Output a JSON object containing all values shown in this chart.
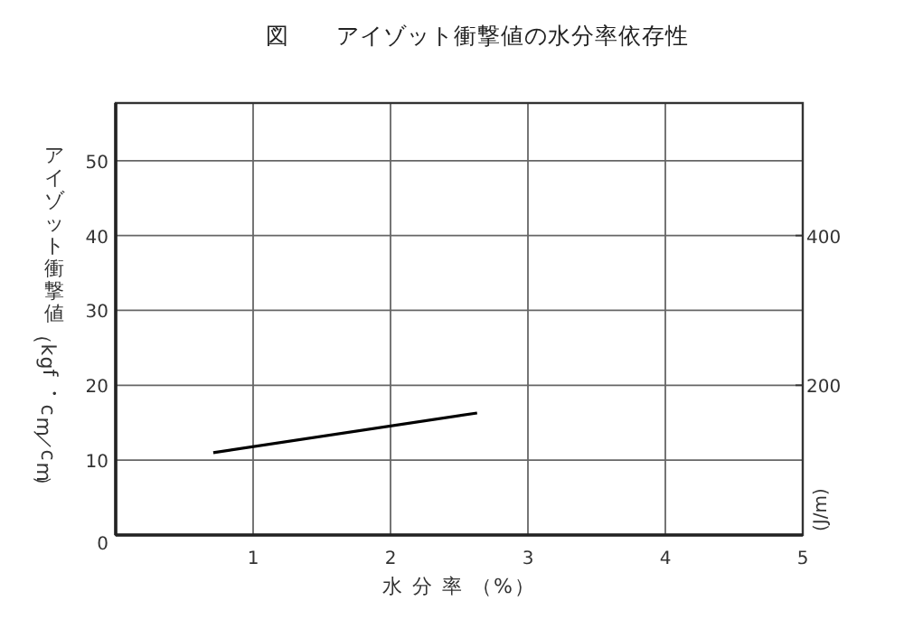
{
  "chart_data": {
    "type": "line",
    "title": "図　　アイゾット衝撃値の水分率依存性",
    "xlabel": "水 分 率 （%）",
    "ylabel": "アイゾット衝撃値（kgf・cm／cm）",
    "y2label": "(J/m)",
    "x": [
      0.71,
      2.63
    ],
    "series": [
      {
        "color": "#000000",
        "values": [
          11.0,
          16.3
        ]
      }
    ],
    "xlim": [
      0,
      5
    ],
    "xticks": [
      1,
      2,
      3,
      4,
      5
    ],
    "ylim": [
      0,
      57.7
    ],
    "yticks": [
      0,
      10,
      20,
      30,
      40,
      50
    ],
    "y2lim": [
      0,
      577
    ],
    "y2ticks": [
      200,
      400
    ],
    "grid": true,
    "marker": "none",
    "line_style": "solid"
  }
}
